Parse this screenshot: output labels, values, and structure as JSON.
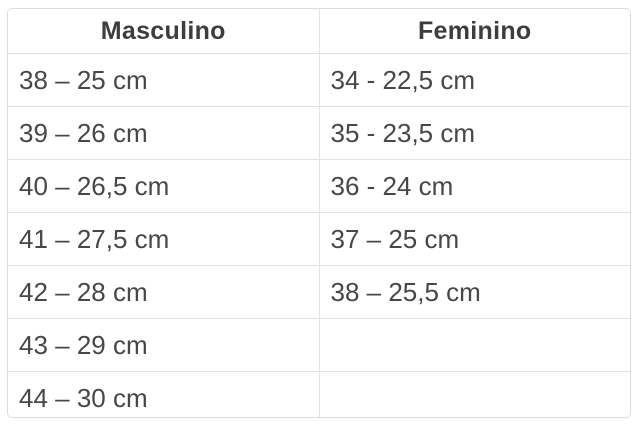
{
  "table": {
    "headers": {
      "masculino": "Masculino",
      "feminino": "Feminino"
    },
    "rows": [
      {
        "masculino": "38 – 25 cm",
        "feminino": "34 - 22,5 cm"
      },
      {
        "masculino": "39 – 26 cm",
        "feminino": "35 - 23,5 cm"
      },
      {
        "masculino": "40 – 26,5 cm",
        "feminino": "36 - 24 cm"
      },
      {
        "masculino": "41 – 27,5 cm",
        "feminino": "37 – 25 cm"
      },
      {
        "masculino": "42 – 28 cm",
        "feminino": "38 – 25,5 cm"
      },
      {
        "masculino": "43 – 29 cm",
        "feminino": ""
      },
      {
        "masculino": "44 – 30 cm",
        "feminino": ""
      }
    ]
  },
  "colors": {
    "header_text": "#3d3d3d",
    "cell_text": "#474747",
    "border": "#e2e2e2",
    "background": "#ffffff"
  },
  "chart_data": {
    "type": "table",
    "title": "",
    "columns": [
      "Masculino",
      "Feminino"
    ],
    "rows": [
      [
        "38 – 25 cm",
        "34 - 22,5 cm"
      ],
      [
        "39 – 26 cm",
        "35 - 23,5 cm"
      ],
      [
        "40 – 26,5 cm",
        "36 - 24 cm"
      ],
      [
        "41 – 27,5 cm",
        "37 – 25 cm"
      ],
      [
        "42 – 28 cm",
        "38 – 25,5 cm"
      ],
      [
        "43 – 29 cm",
        ""
      ],
      [
        "44 – 30 cm",
        ""
      ]
    ]
  }
}
